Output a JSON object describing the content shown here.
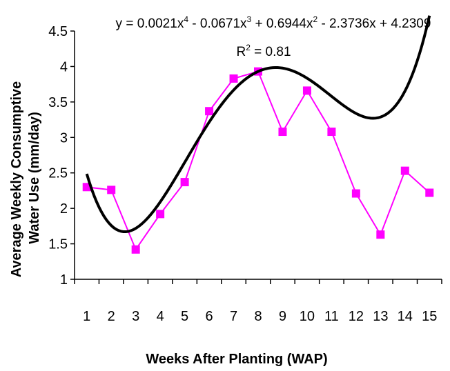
{
  "chart_data": {
    "type": "line",
    "title": "",
    "xlabel": "Weeks After Planting (WAP)",
    "ylabel_line1": "Average  Weekly Consumptive",
    "ylabel_line2": "Water Use  (mm/day)",
    "categories": [
      "1",
      "2",
      "3",
      "4",
      "5",
      "6",
      "7",
      "8",
      "9",
      "10",
      "11",
      "12",
      "13",
      "14",
      "15"
    ],
    "x": [
      1,
      2,
      3,
      4,
      5,
      6,
      7,
      8,
      9,
      10,
      11,
      12,
      13,
      14,
      15
    ],
    "ylim": [
      1,
      4.5
    ],
    "yticks": [
      "1",
      "1.5",
      "2",
      "2.5",
      "3",
      "3.5",
      "4",
      "4.5"
    ],
    "grid": false,
    "series": [
      {
        "values": [
          2.3,
          2.26,
          1.42,
          1.92,
          2.37,
          3.37,
          3.83,
          3.93,
          3.08,
          3.66,
          3.08,
          2.21,
          1.63,
          2.53,
          2.22
        ]
      }
    ],
    "trendline": {
      "type": "polynomial",
      "order": 4,
      "coefficients": [
        0.0021,
        -0.0671,
        0.6944,
        -2.3736,
        4.2309
      ],
      "equation_parts": {
        "p1": "y = 0.0021x",
        "e1": "4",
        "p2": " - 0.0671x",
        "e2": "3",
        "p3": " + 0.6944x",
        "e3": "2",
        "p4": " - 2.3736x + 4.2309"
      },
      "r2_label": "R",
      "r2_exp": "2",
      "r2_value": " = 0.81"
    },
    "colors": {
      "series": "#ff00ff",
      "trend": "#000000",
      "axis": "#000000"
    }
  }
}
